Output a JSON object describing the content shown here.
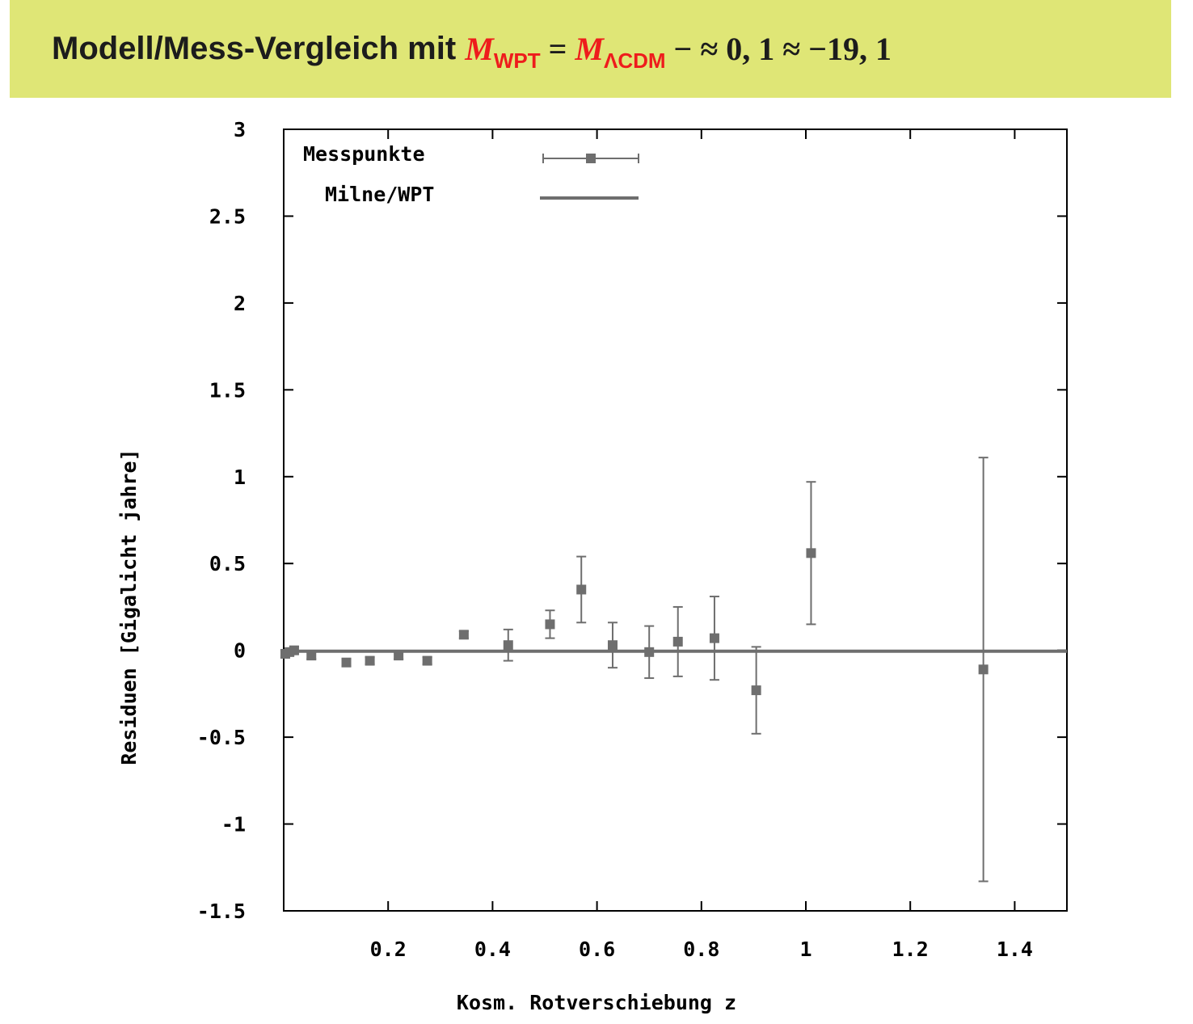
{
  "title": {
    "text": "Modell/Mess-Vergleich mit",
    "m1": "M",
    "sub1": "WPT",
    "eq": "=",
    "m2": "M",
    "sub2": "ΛCDM",
    "rest": "− ≈ 0, 1 ≈ −19, 1"
  },
  "colors": {
    "title_bg": "#dfe676",
    "title_red": "#ee1c1c",
    "series": "#6e6e6e",
    "axes": "#000000"
  },
  "chart_data": {
    "type": "scatter",
    "xlabel": "Kosm. Rotverschiebung z",
    "ylabel": "Residuen [Gigalicht jahre]",
    "xlim": [
      0.0,
      1.5
    ],
    "ylim": [
      -1.5,
      3.0
    ],
    "xticks": [
      {
        "value": 0.2,
        "label": "0.2"
      },
      {
        "value": 0.4,
        "label": "0.4"
      },
      {
        "value": 0.6,
        "label": "0.6"
      },
      {
        "value": 0.8,
        "label": "0.8"
      },
      {
        "value": 1.0,
        "label": "1"
      },
      {
        "value": 1.2,
        "label": "1.2"
      },
      {
        "value": 1.4,
        "label": "1.4"
      }
    ],
    "yticks": [
      {
        "value": 3.0,
        "label": "3"
      },
      {
        "value": 2.5,
        "label": "2.5"
      },
      {
        "value": 2.0,
        "label": "2"
      },
      {
        "value": 1.5,
        "label": "1.5"
      },
      {
        "value": 1.0,
        "label": "1"
      },
      {
        "value": 0.5,
        "label": "0.5"
      },
      {
        "value": 0.0,
        "label": "0"
      },
      {
        "value": -0.5,
        "label": "-0.5"
      },
      {
        "value": -1.0,
        "label": "-1"
      },
      {
        "value": -1.5,
        "label": "-1.5"
      }
    ],
    "grid": false,
    "legend_position": "top-left",
    "series": [
      {
        "name": "Messpunkte",
        "kind": "points_with_errorbars",
        "points": [
          {
            "x": 0.003,
            "y": -0.02,
            "err": 0.02
          },
          {
            "x": 0.011,
            "y": -0.01,
            "err": 0.02
          },
          {
            "x": 0.02,
            "y": 0.0,
            "err": 0.02
          },
          {
            "x": 0.053,
            "y": -0.03,
            "err": 0.02
          },
          {
            "x": 0.12,
            "y": -0.07,
            "err": 0.02
          },
          {
            "x": 0.165,
            "y": -0.06,
            "err": 0.02
          },
          {
            "x": 0.22,
            "y": -0.03,
            "err": 0.02
          },
          {
            "x": 0.275,
            "y": -0.06,
            "err": 0.02
          },
          {
            "x": 0.345,
            "y": 0.09,
            "err": 0.02
          },
          {
            "x": 0.43,
            "y": 0.03,
            "err": 0.09
          },
          {
            "x": 0.51,
            "y": 0.15,
            "err": 0.08
          },
          {
            "x": 0.57,
            "y": 0.35,
            "err": 0.19
          },
          {
            "x": 0.63,
            "y": 0.03,
            "err": 0.13
          },
          {
            "x": 0.7,
            "y": -0.01,
            "err": 0.15
          },
          {
            "x": 0.755,
            "y": 0.05,
            "err": 0.2
          },
          {
            "x": 0.825,
            "y": 0.07,
            "err": 0.24
          },
          {
            "x": 0.905,
            "y": -0.23,
            "err": 0.25
          },
          {
            "x": 1.01,
            "y": 0.56,
            "err": 0.41
          },
          {
            "x": 1.34,
            "y": -0.11,
            "err": 1.22
          }
        ]
      },
      {
        "name": "Milne/WPT",
        "kind": "line",
        "points": [
          {
            "x": 0.0,
            "y": -0.005
          },
          {
            "x": 1.5,
            "y": -0.005
          }
        ]
      }
    ]
  }
}
